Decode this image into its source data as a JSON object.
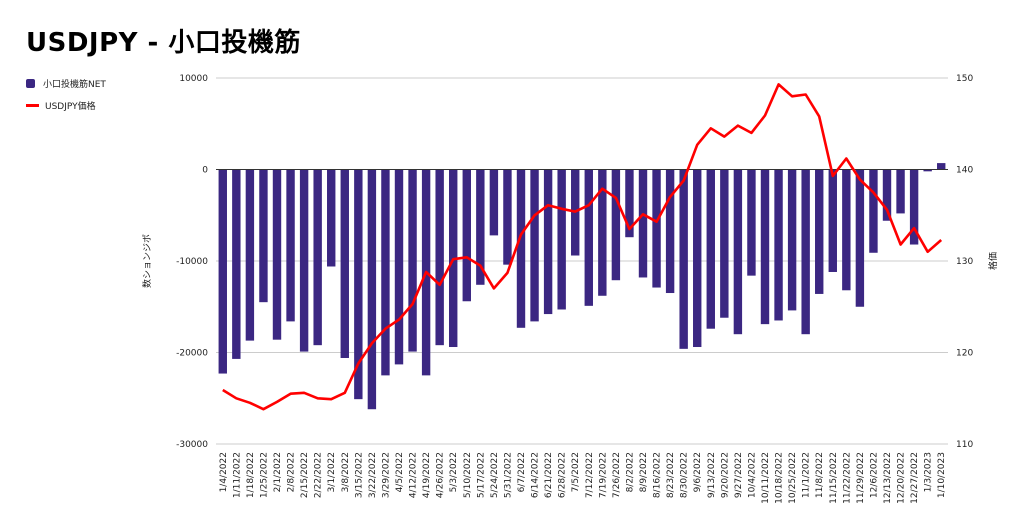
{
  "title": "USDJPY - 小口投機筋",
  "colors": {
    "bar": "#3b2782",
    "line": "#ff0000",
    "grid": "#cccccc",
    "zero": "#333333"
  },
  "chart_data": {
    "type": "bar",
    "title": "USDJPY - 小口投機筋",
    "legend_position": "top-left",
    "grid": true,
    "categories": [
      "1/4/2022",
      "1/11/2022",
      "1/18/2022",
      "1/25/2022",
      "2/1/2022",
      "2/8/2022",
      "2/15/2022",
      "2/22/2022",
      "3/1/2022",
      "3/8/2022",
      "3/15/2022",
      "3/22/2022",
      "3/29/2022",
      "4/5/2022",
      "4/12/2022",
      "4/19/2022",
      "4/26/2022",
      "5/3/2022",
      "5/10/2022",
      "5/17/2022",
      "5/24/2022",
      "5/31/2022",
      "6/7/2022",
      "6/14/2022",
      "6/21/2022",
      "6/28/2022",
      "7/5/2022",
      "7/12/2022",
      "7/19/2022",
      "7/26/2022",
      "8/2/2022",
      "8/9/2022",
      "8/16/2022",
      "8/23/2022",
      "8/30/2022",
      "9/6/2022",
      "9/13/2022",
      "9/20/2022",
      "9/27/2022",
      "10/4/2022",
      "10/11/2022",
      "10/18/2022",
      "10/25/2022",
      "11/1/2022",
      "11/8/2022",
      "11/15/2022",
      "11/22/2022",
      "11/29/2022",
      "12/6/2022",
      "12/13/2022",
      "12/20/2022",
      "12/27/2022",
      "1/3/2023",
      "1/10/2023"
    ],
    "y_left": {
      "label": "数ションジポ",
      "ticks": [
        10000,
        0,
        -10000,
        -20000,
        -30000
      ],
      "tick_labels": [
        "10000",
        "0",
        "-10000",
        "-20000",
        "-30000"
      ],
      "range": [
        -30000,
        10000
      ]
    },
    "y_right": {
      "label": "格価",
      "ticks": [
        150,
        140,
        130,
        120,
        110
      ],
      "tick_labels": [
        "150",
        "140",
        "130",
        "120",
        "110"
      ],
      "range": [
        110,
        150
      ]
    },
    "series": [
      {
        "name": "小口投機筋NET",
        "type": "bar",
        "axis": "left",
        "values": [
          -22300,
          -20700,
          -18700,
          -14500,
          -18600,
          -16600,
          -19900,
          -19200,
          -10600,
          -20600,
          -25100,
          -26200,
          -22500,
          -21300,
          -19900,
          -22500,
          -19200,
          -19400,
          -14400,
          -12600,
          -7200,
          -10400,
          -17300,
          -16600,
          -15800,
          -15300,
          -9400,
          -14900,
          -13800,
          -12100,
          -7400,
          -11800,
          -12900,
          -13500,
          -19600,
          -19400,
          -17400,
          -16200,
          -18000,
          -11600,
          -16900,
          -16500,
          -15400,
          -18000,
          -13600,
          -11200,
          -13200,
          -15000,
          -9100,
          -5600,
          -4800,
          -8200,
          -200,
          700
        ]
      },
      {
        "name": "USDJPY価格",
        "type": "line",
        "axis": "right",
        "values": [
          115.9,
          115.0,
          114.5,
          113.8,
          114.6,
          115.5,
          115.6,
          115.0,
          114.9,
          115.6,
          118.8,
          121.0,
          122.6,
          123.6,
          125.3,
          128.8,
          127.4,
          130.2,
          130.4,
          129.5,
          127.0,
          128.7,
          132.9,
          135.0,
          136.1,
          135.7,
          135.4,
          136.1,
          137.9,
          136.9,
          133.5,
          135.1,
          134.3,
          137.0,
          138.8,
          142.7,
          144.5,
          143.6,
          144.8,
          144.0,
          145.9,
          149.3,
          148.0,
          148.2,
          145.8,
          139.3,
          141.2,
          138.9,
          137.5,
          135.6,
          131.8,
          133.6,
          131.0,
          132.3
        ]
      }
    ]
  }
}
